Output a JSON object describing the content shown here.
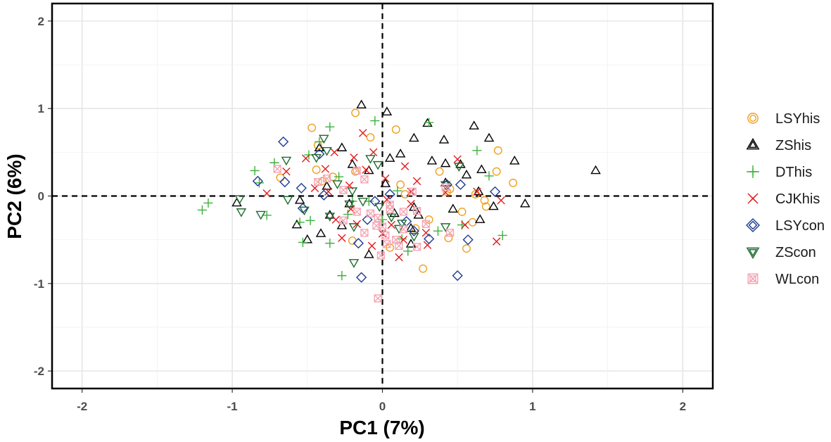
{
  "chart_data": {
    "type": "scatter",
    "title": "",
    "xlabel": "PC1 (7%)",
    "ylabel": "PC2 (6%)",
    "xlim": [
      -2.2,
      2.2
    ],
    "ylim": [
      -2.2,
      2.2
    ],
    "xticks": [
      -2,
      -1,
      0,
      1,
      2
    ],
    "yticks": [
      -2,
      -1,
      0,
      1,
      2
    ],
    "xtick_labels": [
      "-2",
      "-1",
      "0",
      "1",
      "2"
    ],
    "ytick_labels": [
      "-2",
      "-1",
      "0",
      "1",
      "2"
    ],
    "grid": true,
    "reference_lines": {
      "x": 0,
      "y": 0,
      "style": "dashed"
    },
    "legend_position": "right",
    "series": [
      {
        "name": "LSYhis",
        "shape": "circle",
        "color": "#f0a020",
        "points": [
          [
            -0.18,
            0.95
          ],
          [
            -0.47,
            0.78
          ],
          [
            0.09,
            0.76
          ],
          [
            -0.08,
            0.67
          ],
          [
            0.77,
            0.52
          ],
          [
            0.87,
            0.15
          ],
          [
            -0.43,
            0.58
          ],
          [
            -0.44,
            0.3
          ],
          [
            -0.4,
            0.17
          ],
          [
            -0.33,
            0.22
          ],
          [
            -0.18,
            0.28
          ],
          [
            0.38,
            0.28
          ],
          [
            0.76,
            0.28
          ],
          [
            0.12,
            0.13
          ],
          [
            0.15,
            0.02
          ],
          [
            0.43,
            0.05
          ],
          [
            0.62,
            0.02
          ],
          [
            0.68,
            -0.05
          ],
          [
            0.69,
            -0.12
          ],
          [
            0.53,
            -0.18
          ],
          [
            0.31,
            -0.27
          ],
          [
            0.22,
            -0.37
          ],
          [
            0.44,
            -0.48
          ],
          [
            0.56,
            -0.6
          ],
          [
            0.27,
            -0.83
          ],
          [
            -0.2,
            -0.51
          ],
          [
            0.05,
            -0.59
          ],
          [
            0.6,
            -0.3
          ],
          [
            -0.68,
            0.21
          ],
          [
            0.45,
            0.08
          ]
        ]
      },
      {
        "name": "ZShis",
        "shape": "triangle",
        "color": "#000000",
        "points": [
          [
            -0.14,
            1.04
          ],
          [
            0.03,
            0.96
          ],
          [
            0.3,
            0.83
          ],
          [
            0.61,
            0.8
          ],
          [
            0.71,
            0.66
          ],
          [
            0.41,
            0.64
          ],
          [
            -0.42,
            0.55
          ],
          [
            -0.27,
            0.55
          ],
          [
            0.21,
            0.66
          ],
          [
            0.12,
            0.48
          ],
          [
            0.05,
            0.43
          ],
          [
            0.33,
            0.4
          ],
          [
            0.52,
            0.36
          ],
          [
            0.42,
            0.37
          ],
          [
            0.88,
            0.4
          ],
          [
            0.66,
            0.3
          ],
          [
            0.56,
            0.24
          ],
          [
            1.42,
            0.29
          ],
          [
            -0.2,
            0.36
          ],
          [
            -0.09,
            0.29
          ],
          [
            -0.37,
            0.11
          ],
          [
            -0.55,
            -0.05
          ],
          [
            -0.97,
            -0.08
          ],
          [
            -0.22,
            -0.09
          ],
          [
            0.02,
            0.14
          ],
          [
            0.21,
            -0.13
          ],
          [
            0.47,
            -0.15
          ],
          [
            0.64,
            0.05
          ],
          [
            0.74,
            -0.12
          ],
          [
            0.95,
            -0.09
          ],
          [
            -0.27,
            -0.34
          ],
          [
            -0.41,
            -0.43
          ],
          [
            -0.57,
            -0.33
          ],
          [
            -0.5,
            -0.5
          ],
          [
            -0.09,
            -0.67
          ],
          [
            0.19,
            -0.55
          ],
          [
            0.19,
            -0.37
          ],
          [
            0.08,
            -0.2
          ],
          [
            0.65,
            -0.27
          ],
          [
            -0.35,
            -0.22
          ],
          [
            0.42,
            0.15
          ],
          [
            0.24,
            -0.22
          ]
        ]
      },
      {
        "name": "DThis",
        "shape": "plus",
        "color": "#3db03d",
        "points": [
          [
            -1.2,
            -0.16
          ],
          [
            -1.16,
            -0.08
          ],
          [
            -0.85,
            0.29
          ],
          [
            -0.82,
            0.15
          ],
          [
            -0.72,
            0.38
          ],
          [
            -0.77,
            -0.22
          ],
          [
            -0.55,
            -0.3
          ],
          [
            -0.53,
            -0.53
          ],
          [
            -0.42,
            0.62
          ],
          [
            -0.35,
            0.79
          ],
          [
            -0.49,
            0.47
          ],
          [
            -0.35,
            -0.54
          ],
          [
            -0.27,
            -0.91
          ],
          [
            -0.23,
            -0.21
          ],
          [
            -0.2,
            -0.06
          ],
          [
            -0.05,
            0.86
          ],
          [
            0.31,
            0.84
          ],
          [
            0.63,
            0.52
          ],
          [
            0.71,
            0.23
          ],
          [
            0.37,
            -0.4
          ],
          [
            0.8,
            -0.45
          ],
          [
            0.53,
            -0.33
          ],
          [
            0.13,
            -0.49
          ],
          [
            0.17,
            -0.63
          ],
          [
            -0.09,
            -0.06
          ],
          [
            -0.29,
            0.22
          ],
          [
            0.1,
            0.06
          ],
          [
            0.0,
            -0.27
          ],
          [
            -0.48,
            -0.28
          ]
        ]
      },
      {
        "name": "CJKhis",
        "shape": "cross",
        "color": "#e41a1c",
        "points": [
          [
            -0.77,
            0.03
          ],
          [
            -0.64,
            0.28
          ],
          [
            -0.51,
            0.43
          ],
          [
            -0.32,
            0.5
          ],
          [
            -0.38,
            0.31
          ],
          [
            -0.19,
            0.44
          ],
          [
            -0.13,
            0.72
          ],
          [
            -0.06,
            0.5
          ],
          [
            -0.11,
            0.3
          ],
          [
            -0.36,
            0.05
          ],
          [
            -0.22,
            0.12
          ],
          [
            -0.45,
            0.09
          ],
          [
            0.15,
            0.34
          ],
          [
            0.02,
            0.2
          ],
          [
            0.23,
            0.17
          ],
          [
            0.19,
            0.05
          ],
          [
            0.03,
            -0.04
          ],
          [
            0.19,
            -0.09
          ],
          [
            0.06,
            -0.33
          ],
          [
            0.0,
            -0.43
          ],
          [
            0.29,
            -0.42
          ],
          [
            0.3,
            -0.56
          ],
          [
            0.14,
            -0.5
          ],
          [
            0.11,
            -0.7
          ],
          [
            -0.17,
            -0.32
          ],
          [
            -0.21,
            -0.15
          ],
          [
            -0.27,
            -0.48
          ],
          [
            -0.07,
            -0.57
          ],
          [
            0.5,
            0.42
          ],
          [
            0.42,
            0.04
          ],
          [
            0.55,
            -0.33
          ],
          [
            0.79,
            -0.05
          ],
          [
            0.76,
            -0.52
          ],
          [
            0.63,
            0.05
          ],
          [
            -0.31,
            -0.27
          ]
        ]
      },
      {
        "name": "LSYcon",
        "shape": "diamond",
        "color": "#1f3a93",
        "points": [
          [
            -0.66,
            0.62
          ],
          [
            -0.83,
            0.17
          ],
          [
            -0.65,
            0.16
          ],
          [
            -0.54,
            0.09
          ],
          [
            -0.53,
            -0.14
          ],
          [
            -0.42,
            0.48
          ],
          [
            -0.39,
            0.01
          ],
          [
            -0.1,
            -0.27
          ],
          [
            -0.16,
            -0.54
          ],
          [
            -0.14,
            -0.93
          ],
          [
            0.05,
            0.02
          ],
          [
            0.21,
            -0.4
          ],
          [
            0.31,
            -0.49
          ],
          [
            0.52,
            0.13
          ],
          [
            0.57,
            -0.5
          ],
          [
            0.75,
            0.05
          ],
          [
            0.5,
            -0.91
          ],
          [
            0.43,
            0.13
          ],
          [
            -0.05,
            -0.06
          ],
          [
            0.16,
            -0.29
          ]
        ]
      },
      {
        "name": "ZScon",
        "shape": "triangle-down",
        "color": "#1e6b2e",
        "points": [
          [
            -0.95,
            -0.03
          ],
          [
            -0.94,
            -0.18
          ],
          [
            -0.81,
            -0.21
          ],
          [
            -0.64,
            0.41
          ],
          [
            -0.63,
            -0.04
          ],
          [
            -0.52,
            -0.16
          ],
          [
            -0.44,
            0.44
          ],
          [
            -0.39,
            0.66
          ],
          [
            -0.37,
            0.52
          ],
          [
            -0.35,
            -0.23
          ],
          [
            -0.3,
            0.14
          ],
          [
            -0.2,
            0.06
          ],
          [
            -0.19,
            -0.35
          ],
          [
            -0.19,
            -0.76
          ],
          [
            -0.13,
            -0.06
          ],
          [
            -0.08,
            0.43
          ],
          [
            -0.03,
            0.36
          ],
          [
            0.06,
            -0.24
          ],
          [
            0.13,
            -0.31
          ],
          [
            0.42,
            -0.35
          ],
          [
            0.42,
            0.13
          ],
          [
            0.51,
            0.34
          ],
          [
            -0.02,
            -0.12
          ],
          [
            0.21,
            -0.46
          ],
          [
            -0.22,
            -0.09
          ],
          [
            0.11,
            -0.37
          ]
        ]
      },
      {
        "name": "WLcon",
        "shape": "square-x",
        "color": "#f4a6b4",
        "points": [
          [
            -0.7,
            0.31
          ],
          [
            -0.43,
            0.16
          ],
          [
            -0.37,
            0.2
          ],
          [
            -0.26,
            0.07
          ],
          [
            -0.17,
            0.29
          ],
          [
            -0.17,
            -0.18
          ],
          [
            -0.12,
            0.19
          ],
          [
            -0.12,
            -0.42
          ],
          [
            -0.04,
            -0.34
          ],
          [
            -0.03,
            -0.25
          ],
          [
            0.0,
            -0.35
          ],
          [
            0.02,
            -0.45
          ],
          [
            0.05,
            -0.1
          ],
          [
            0.05,
            -0.15
          ],
          [
            0.09,
            -0.5
          ],
          [
            0.11,
            -0.57
          ],
          [
            0.14,
            -0.18
          ],
          [
            0.14,
            -0.38
          ],
          [
            0.2,
            0.05
          ],
          [
            0.23,
            -0.17
          ],
          [
            0.23,
            -0.58
          ],
          [
            0.29,
            -0.32
          ],
          [
            0.42,
            0.1
          ],
          [
            0.45,
            -0.42
          ],
          [
            0.03,
            -0.55
          ],
          [
            -0.01,
            -0.68
          ],
          [
            -0.03,
            -1.17
          ],
          [
            -0.26,
            -0.28
          ],
          [
            -0.08,
            -0.2
          ]
        ]
      }
    ]
  }
}
